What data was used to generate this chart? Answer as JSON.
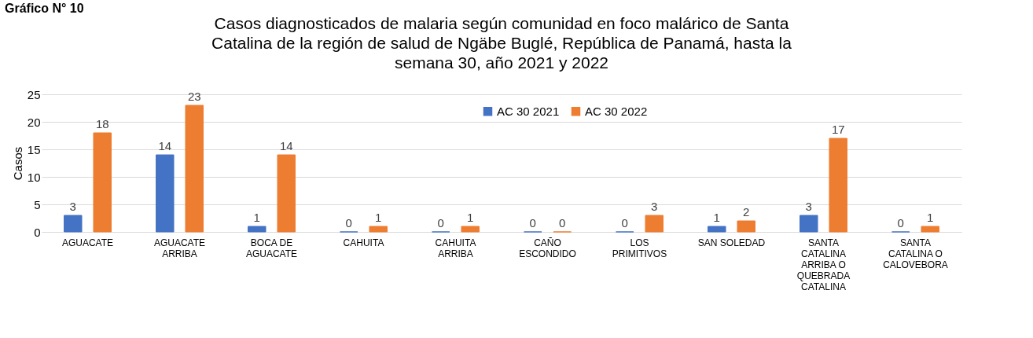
{
  "chart_data": {
    "type": "bar",
    "title": "Casos diagnosticados de malaria según comunidad en foco malárico de Santa Catalina de la región de salud de Ngäbe Buglé, República de Panamá, hasta la semana 30, año 2021 y 2022",
    "annotations": [
      "Gráfico N° 10"
    ],
    "ylabel": "Casos",
    "categories": [
      "AGUACATE",
      "AGUACATE ARRIBA",
      "BOCA DE AGUACATE",
      "CAHUITA",
      "CAHUITA ARRIBA",
      "CAÑO ESCONDIDO",
      "LOS PRIMITIVOS",
      "SAN SOLEDAD",
      "SANTA CATALINA ARRIBA O QUEBRADA CATALINA",
      "SANTA CATALINA O CALOVEBORA"
    ],
    "series": [
      {
        "name": "AC 30 2021",
        "color": "#4472c4",
        "values": [
          3,
          14,
          1,
          0,
          0,
          0,
          0,
          1,
          3,
          0
        ]
      },
      {
        "name": "AC 30 2022",
        "color": "#ed7d31",
        "values": [
          18,
          23,
          14,
          1,
          1,
          0,
          3,
          2,
          17,
          1
        ]
      }
    ],
    "ylim": [
      0,
      25
    ],
    "yticks": [
      0,
      5,
      10,
      15,
      20,
      25
    ],
    "grid": "y",
    "legend": "top",
    "data_labels": true
  }
}
